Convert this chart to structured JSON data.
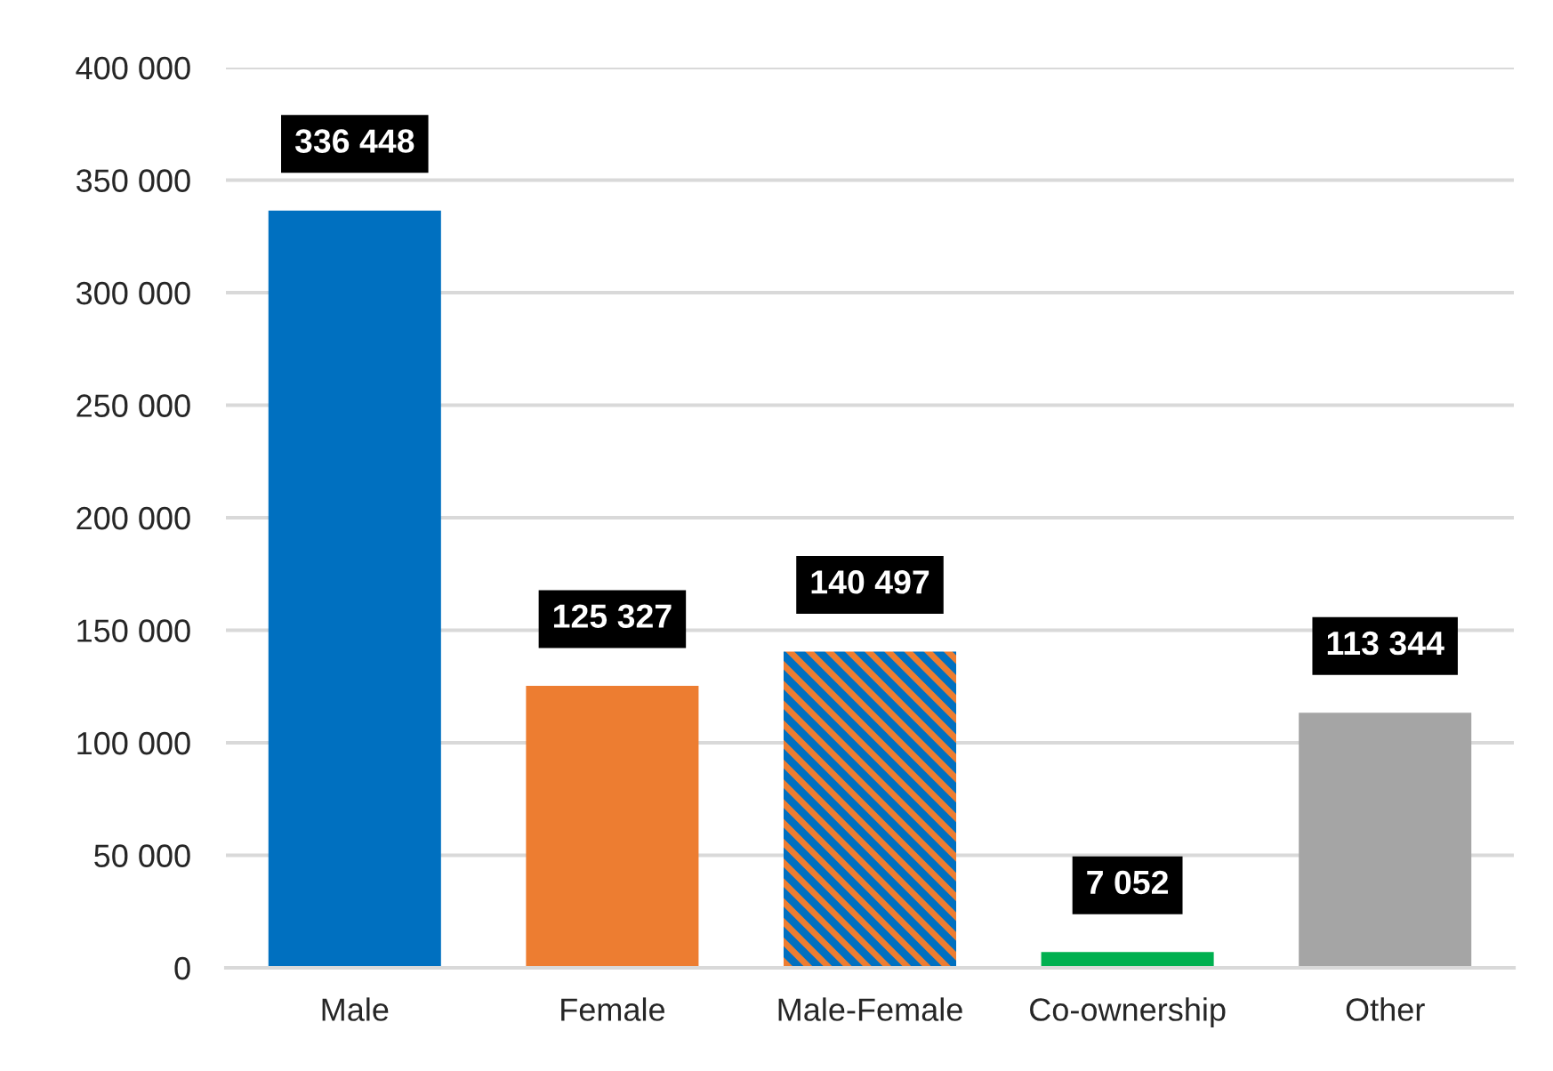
{
  "chart_data": {
    "type": "bar",
    "categories": [
      "Male",
      "Female",
      "Male-Female",
      "Co-ownership",
      "Other"
    ],
    "values": [
      336448,
      125327,
      140497,
      7052,
      113344
    ],
    "colors": [
      "#0070c0",
      "#ed7d31",
      "#0070c0",
      "#00b050",
      "#a5a5a5"
    ],
    "ylim": [
      0,
      400000
    ],
    "yticks": [
      {
        "value": 0,
        "label": "0"
      },
      {
        "value": 50000,
        "label": "50 000"
      },
      {
        "value": 100000,
        "label": "100 000"
      },
      {
        "value": 150000,
        "label": "150 000"
      },
      {
        "value": 200000,
        "label": "200 000"
      },
      {
        "value": 250000,
        "label": "250 000"
      },
      {
        "value": 300000,
        "label": "300 000"
      },
      {
        "value": 350000,
        "label": "350 000"
      },
      {
        "value": 400000,
        "label": "400 000"
      }
    ],
    "grid": "y",
    "legend": false,
    "data_labels": true
  }
}
